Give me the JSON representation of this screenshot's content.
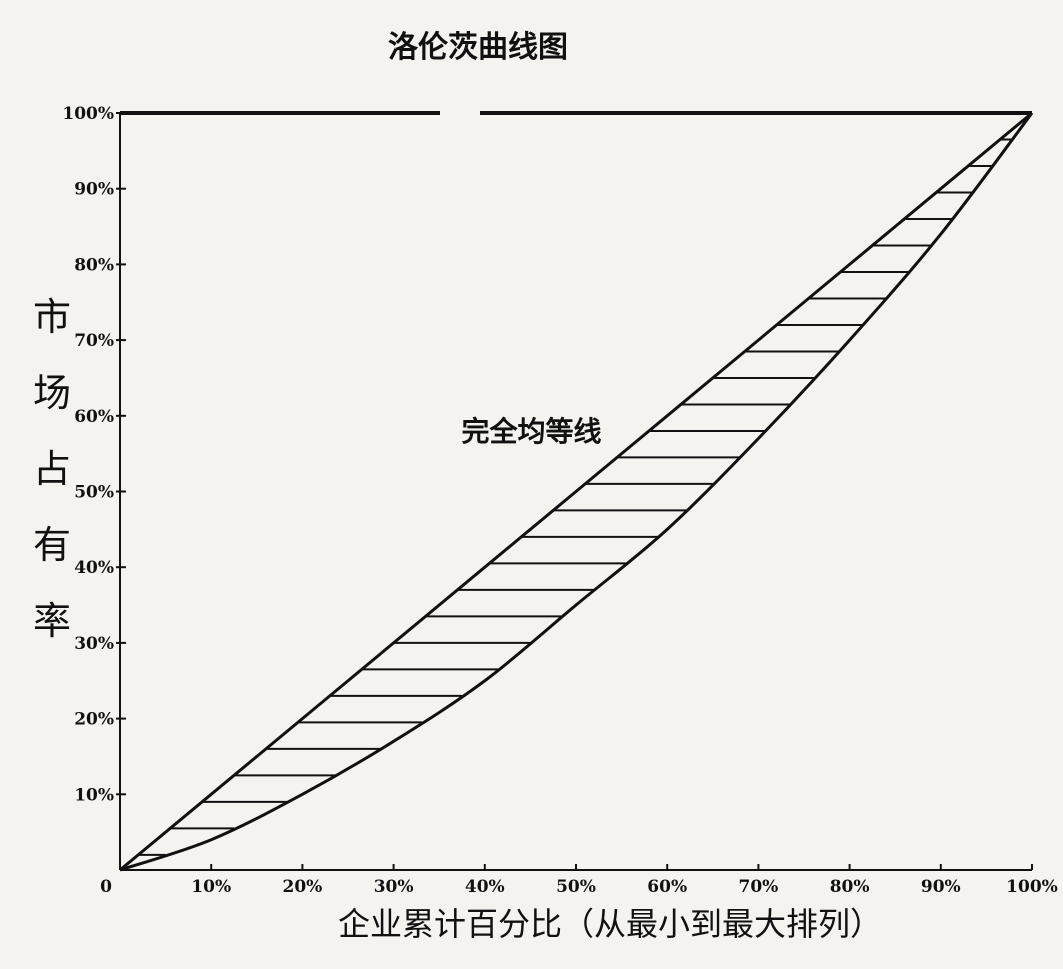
{
  "chart_data": {
    "type": "line",
    "title": "洛伦茨曲线图",
    "xlabel": "企业累计百分比（从最小到最大排列）",
    "ylabel": "市场占有率",
    "xlim": [
      0,
      100
    ],
    "ylim": [
      0,
      100
    ],
    "x_ticks": [
      "0",
      "10%",
      "20%",
      "30%",
      "40%",
      "50%",
      "60%",
      "70%",
      "80%",
      "90%",
      "100%"
    ],
    "y_ticks": [
      "10%",
      "20%",
      "30%",
      "40%",
      "50%",
      "60%",
      "70%",
      "80%",
      "90%",
      "100%"
    ],
    "annotations": [
      {
        "text": "完全均等线",
        "x": 38,
        "y": 58
      }
    ],
    "series": [
      {
        "x": [
          0,
          10,
          20,
          30,
          40,
          50,
          60,
          70,
          80,
          90,
          100
        ],
        "y": [
          0,
          10,
          20,
          30,
          40,
          50,
          60,
          70,
          80,
          90,
          100
        ]
      },
      {
        "x": [
          0,
          10,
          20,
          30,
          40,
          50,
          60,
          70,
          80,
          90,
          100
        ],
        "y": [
          0,
          4,
          10,
          17,
          25,
          35,
          45,
          57,
          70,
          84,
          100
        ]
      }
    ],
    "fill_between": "hatched",
    "grid": false
  }
}
